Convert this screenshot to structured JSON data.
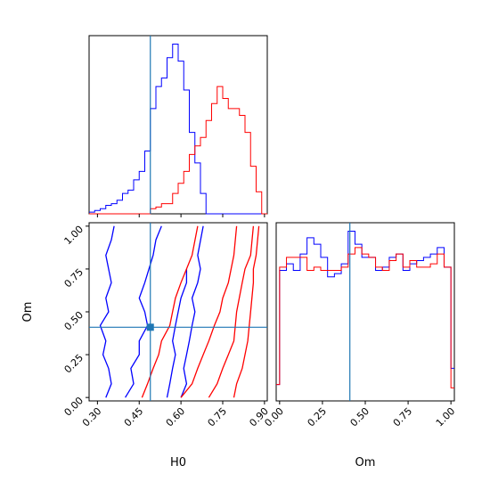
{
  "chart_data": {
    "type": "corner",
    "parameters": [
      "H0",
      "Om"
    ],
    "truths": {
      "H0": 0.49,
      "Om": 0.41
    },
    "colors": {
      "blue": "#0000ff",
      "red": "#ff0000",
      "truth": "#1f77b4"
    },
    "panels": [
      {
        "id": "hist-H0",
        "type": "histogram",
        "xlabel": "",
        "xlim": [
          0.27,
          0.91
        ],
        "bin_edges": [
          0.27,
          0.29,
          0.31,
          0.33,
          0.35,
          0.37,
          0.39,
          0.41,
          0.43,
          0.45,
          0.47,
          0.49,
          0.51,
          0.53,
          0.55,
          0.57,
          0.59,
          0.61,
          0.63,
          0.65,
          0.67,
          0.69,
          0.71,
          0.73,
          0.75,
          0.77,
          0.79,
          0.81,
          0.83,
          0.85,
          0.87,
          0.89,
          0.91
        ],
        "series": [
          {
            "name": "",
            "color": "blue",
            "counts": [
              1,
              2,
              3,
              5,
              6,
              8,
              12,
              14,
              20,
              25,
              37,
              62,
              75,
              80,
              92,
              100,
              90,
              73,
              48,
              30,
              12,
              0,
              0,
              0,
              0,
              0,
              0,
              0,
              0,
              0,
              0,
              0
            ]
          },
          {
            "name": "",
            "color": "red",
            "counts": [
              0,
              0,
              0,
              0,
              0,
              0,
              0,
              0,
              0,
              0,
              0,
              3,
              4,
              6,
              6,
              12,
              18,
              25,
              35,
              40,
              45,
              55,
              65,
              75,
              68,
              62,
              62,
              58,
              48,
              28,
              13,
              0
            ]
          }
        ]
      },
      {
        "id": "hist-Om",
        "type": "histogram",
        "xlabel": "Om",
        "xlim": [
          -0.02,
          1.02
        ],
        "xticks": [
          "0.00",
          "0.25",
          "0.50",
          "0.75",
          "1.00"
        ],
        "bin_edges": [
          -0.02,
          0.0,
          0.04,
          0.08,
          0.12,
          0.16,
          0.2,
          0.24,
          0.28,
          0.32,
          0.36,
          0.4,
          0.44,
          0.48,
          0.52,
          0.56,
          0.6,
          0.64,
          0.68,
          0.72,
          0.76,
          0.8,
          0.84,
          0.88,
          0.92,
          0.96,
          1.0,
          1.02
        ],
        "series": [
          {
            "name": "",
            "color": "blue",
            "counts": [
              5,
              40,
              42,
              40,
              45,
              50,
              48,
              44,
              38,
              39,
              42,
              52,
              48,
              44,
              44,
              40,
              41,
              44,
              45,
              40,
              42,
              43,
              44,
              45,
              47,
              41,
              10
            ]
          },
          {
            "name": "",
            "color": "red",
            "counts": [
              5,
              41,
              44,
              44,
              44,
              40,
              41,
              40,
              40,
              40,
              41,
              45,
              47,
              45,
              44,
              41,
              40,
              43,
              45,
              41,
              43,
              41,
              41,
              42,
              45,
              41,
              4
            ]
          }
        ]
      },
      {
        "id": "contour-H0-Om",
        "type": "contour",
        "xlabel": "H0",
        "ylabel": "Om",
        "xlim": [
          0.27,
          0.91
        ],
        "ylim": [
          -0.02,
          1.02
        ],
        "xticks": [
          "0.30",
          "0.45",
          "0.60",
          "0.75",
          "0.90"
        ],
        "yticks": [
          "0.00",
          "0.25",
          "0.50",
          "0.75",
          "1.00"
        ],
        "contours": [
          {
            "color": "blue",
            "x": [
              [
                0.33,
                0.35,
                0.34,
                0.32,
                0.33,
                0.31,
                0.34,
                0.33,
                0.35,
                0.33,
                0.35,
                0.36
              ],
              [
                0.4,
                0.43,
                0.42,
                0.45,
                0.45,
                0.48,
                0.47,
                0.45,
                0.47,
                0.5,
                0.51,
                0.53
              ],
              [
                0.55,
                0.56,
                0.57,
                0.58,
                0.57,
                0.58,
                0.59,
                0.6,
                0.62,
                0.62
              ],
              [
                0.6,
                0.62,
                0.61,
                0.62,
                0.63,
                0.64,
                0.65,
                0.64,
                0.66,
                0.67,
                0.66,
                0.68
              ]
            ],
            "y": [
              [
                0.0,
                0.08,
                0.17,
                0.25,
                0.33,
                0.42,
                0.5,
                0.58,
                0.67,
                0.83,
                0.92,
                1.0
              ],
              [
                0.0,
                0.08,
                0.17,
                0.25,
                0.33,
                0.42,
                0.5,
                0.58,
                0.67,
                0.83,
                0.92,
                1.0
              ],
              [
                0.0,
                0.08,
                0.17,
                0.25,
                0.33,
                0.42,
                0.5,
                0.58,
                0.67,
                0.75
              ],
              [
                0.0,
                0.08,
                0.17,
                0.25,
                0.33,
                0.42,
                0.5,
                0.58,
                0.67,
                0.75,
                0.83,
                1.0
              ]
            ]
          },
          {
            "color": "red",
            "x": [
              [
                0.46,
                0.48,
                0.5,
                0.52,
                0.53,
                0.56,
                0.57,
                0.58,
                0.6,
                0.62,
                0.64,
                0.66
              ],
              [
                0.6,
                0.64,
                0.66,
                0.68,
                0.7,
                0.72,
                0.74,
                0.75,
                0.77,
                0.79,
                0.8
              ],
              [
                0.7,
                0.73,
                0.75,
                0.77,
                0.79,
                0.8,
                0.82,
                0.83,
                0.85,
                0.86
              ],
              [
                0.79,
                0.8,
                0.82,
                0.83,
                0.84,
                0.85,
                0.86,
                0.86,
                0.87,
                0.88
              ]
            ],
            "y": [
              [
                0.0,
                0.08,
                0.17,
                0.25,
                0.33,
                0.42,
                0.5,
                0.58,
                0.67,
                0.75,
                0.83,
                1.0
              ],
              [
                0.0,
                0.08,
                0.17,
                0.25,
                0.33,
                0.42,
                0.5,
                0.58,
                0.67,
                0.83,
                1.0
              ],
              [
                0.0,
                0.08,
                0.17,
                0.25,
                0.33,
                0.5,
                0.67,
                0.75,
                0.83,
                1.0
              ],
              [
                0.0,
                0.08,
                0.17,
                0.25,
                0.33,
                0.5,
                0.67,
                0.75,
                0.83,
                1.0
              ]
            ]
          }
        ]
      }
    ]
  }
}
